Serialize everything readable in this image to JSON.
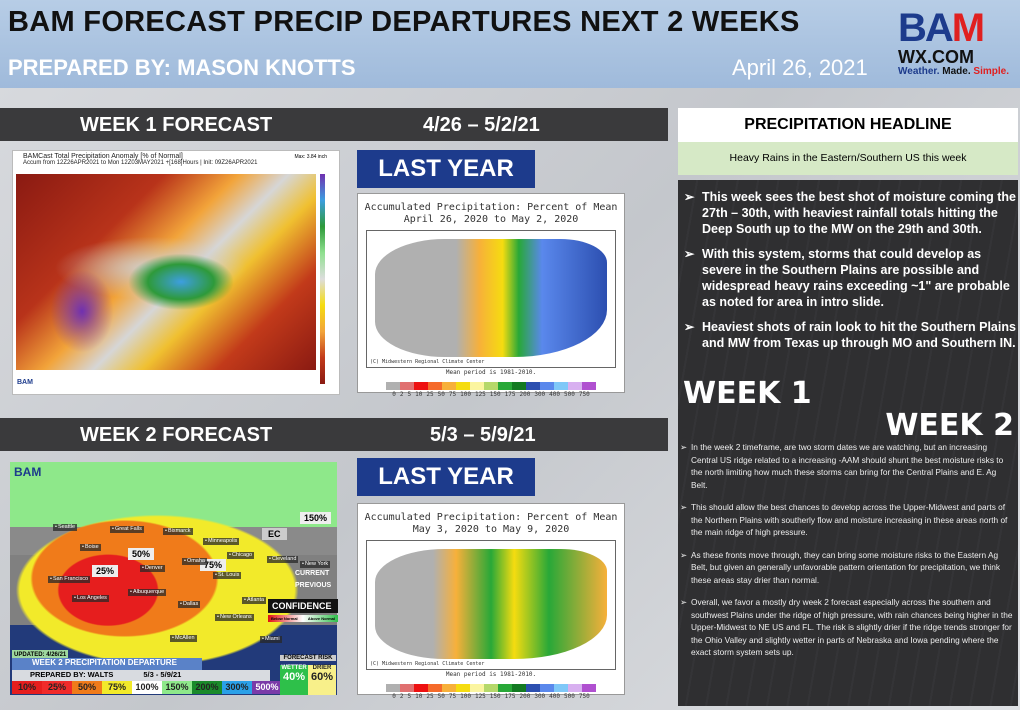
{
  "header": {
    "title": "BAM FORECAST PRECIP DEPARTURES NEXT 2 WEEKS",
    "prepared_by": "PREPARED BY: MASON KNOTTS",
    "date": "April 26, 2021"
  },
  "logo": {
    "text": "BAM",
    "sub": "WX.COM",
    "tag": [
      "Weather.",
      "Made.",
      "Simple."
    ]
  },
  "week1": {
    "label": "WEEK 1 FORECAST",
    "dates": "4/26 – 5/2/21",
    "map": {
      "title": "BAMCast Total Precipitation Anomaly [% of Normal]",
      "subtitle": "Accum from 12Z26APR2021 to Mon 12Z03MAY2021 +[168]Hours | Init: 09Z26APR2021",
      "max": "Max: 3.84 inch",
      "scale": [
        "500",
        "400",
        "300",
        "250",
        "200",
        "175",
        "150",
        "125",
        "110",
        "100",
        "90",
        "75",
        "50",
        "25",
        "15",
        "10",
        "5",
        "0"
      ]
    },
    "last_year": {
      "label": "LAST YEAR",
      "title": "Accumulated Precipitation: Percent of Mean",
      "period": "April 26, 2020 to May 2, 2020",
      "credit": "(C) Midwestern Regional Climate Center",
      "mean": "Mean period is 1981-2010."
    }
  },
  "week2": {
    "label": "WEEK 2 FORECAST",
    "dates": "5/3 – 5/9/21",
    "map": {
      "updated": "UPDATED: 4/26/21",
      "title": "WEEK 2 PRECIPITATION DEPARTURE",
      "prepared": "PREPARED BY: WALTS",
      "dates": "5/3 - 5/9/21",
      "legend": [
        "10%",
        "25%",
        "50%",
        "75%",
        "100%",
        "150%",
        "200%",
        "300%",
        "500%"
      ],
      "area_labels": [
        "25%",
        "50%",
        "75%",
        "150%",
        "EC"
      ],
      "cities": [
        "Seattle",
        "Great Falls",
        "Bismarck",
        "Minneapolis",
        "Boise",
        "Omaha",
        "Chicago",
        "Cleveland",
        "New York",
        "Denver",
        "St. Louis",
        "San Francisco",
        "Los Angeles",
        "Albuquerque",
        "Dallas",
        "Atlanta",
        "New Orleans",
        "McAllen",
        "Miami"
      ],
      "current": "CURRENT",
      "previous": "PREVIOUS",
      "confidence": "CONFIDENCE",
      "below": "Below Normal",
      "above": "Above Normal",
      "risk": {
        "label": "FORECAST RISK",
        "wetter": "WETTER",
        "wetter_pct": "40%",
        "drier": "DRIER",
        "drier_pct": "60%"
      }
    },
    "last_year": {
      "label": "LAST YEAR",
      "title": "Accumulated Precipitation: Percent of Mean",
      "period": "May 3, 2020 to May 9, 2020",
      "credit": "(C) Midwestern Regional Climate Center",
      "mean": "Mean period is 1981-2010."
    }
  },
  "ly_scale": [
    "0",
    "2",
    "5",
    "10",
    "25",
    "50",
    "75",
    "100",
    "125",
    "150",
    "175",
    "200",
    "300",
    "400",
    "500",
    "750"
  ],
  "ly_colors": [
    "#b0b0b0",
    "#e07070",
    "#ee1010",
    "#f56a2a",
    "#f7b03a",
    "#f5dc10",
    "#fbf5a0",
    "#b5d86a",
    "#28a838",
    "#137a22",
    "#2c4fb0",
    "#5a88ec",
    "#7fc8f8",
    "#d8b0f0",
    "#b050d0"
  ],
  "headline": {
    "label": "PRECIPITATION HEADLINE",
    "text": "Heavy Rains in the Eastern/Southern US this week"
  },
  "week1_bullets": [
    "This week sees the best shot of moisture coming the 27th – 30th, with heaviest rainfall totals hitting the Deep South up to the MW on the 29th and 30th.",
    "With this system, storms that could develop as severe in the Southern Plains are possible and widespread heavy rains exceeding ~1\" are probable as noted for area in intro slide.",
    "Heaviest shots of rain look to hit the Southern Plains and MW from Texas up through MO and Southern IN."
  ],
  "week1_tag": "WEEK 1",
  "week2_tag": "WEEK 2",
  "week2_bullets": [
    "In the week 2 timeframe, are two storm dates we are watching, but an increasing Central US ridge related to a increasing -AAM should shunt the best moisture risks to the north limiting how much these storms can bring for the Central Plains and E. Ag Belt.",
    "This should allow the best chances to develop across the Upper-Midwest and parts of the Northern Plains with southerly flow and moisture increasing in these areas north of the main ridge of high pressure.",
    "As these fronts move through, they can bring some moisture risks to the Eastern Ag Belt, but given an generally unfavorable pattern orientation for precipitation, we think these areas stay drier than normal.",
    "Overall, we favor a mostly dry week 2 forecast especially across the southern and southwest Plains under the ridge of high pressure, with rain chances being higher in the Upper-Midwest to NE US and FL. The risk is slightly drier if the ridge trends stronger for the Ohio Valley and slightly wetter in parts of Nebraska and Iowa pending where the exact storm system sets up."
  ],
  "colors": {
    "bar": "#3a3a3c",
    "last_year": "#1d3b8c",
    "headline_bg": "#d6e9c6",
    "panel": "#2f2f31"
  }
}
